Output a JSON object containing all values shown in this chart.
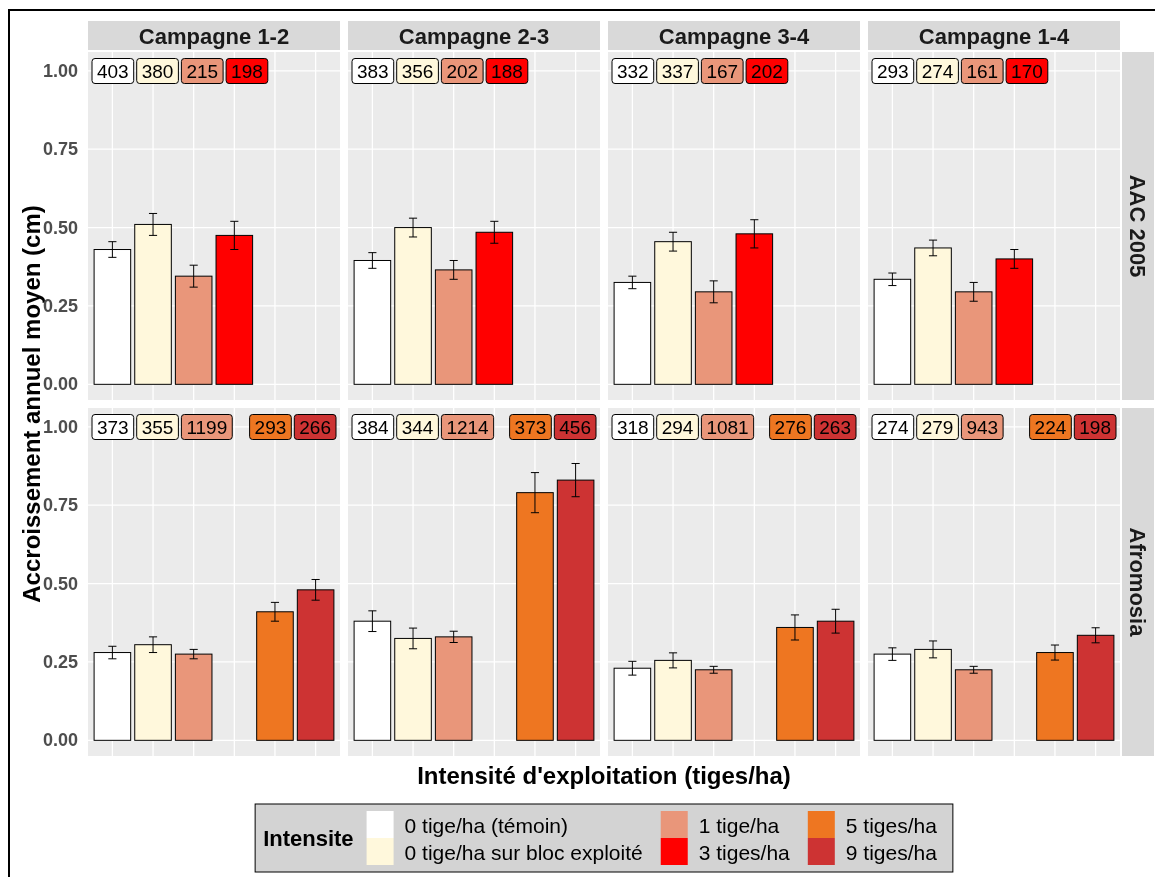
{
  "chart_data": [
    {
      "type": "bar",
      "title": "AAC 2005",
      "ylabel": "Accroissement annuel moyen (cm)",
      "legend": "bottom",
      "legend_title": "Intensite",
      "categories": [
        "Campagne 1-2",
        "Campagne 2-3",
        "Campagne 3-4",
        "Campagne 1-4"
      ],
      "series": [
        {
          "name": "0 tige/ha (témoin)",
          "color": "#ffffff",
          "values": [
            0.43,
            0.395,
            0.325,
            0.335
          ],
          "errors": [
            0.025,
            0.025,
            0.02,
            0.02
          ]
        },
        {
          "name": "0 tige/ha sur bloc exploité",
          "color": "#fff8dc",
          "values": [
            0.51,
            0.5,
            0.455,
            0.435
          ],
          "errors": [
            0.035,
            0.03,
            0.03,
            0.025
          ]
        },
        {
          "name": "1 tige/ha",
          "color": "#e9967a",
          "values": [
            0.345,
            0.365,
            0.295,
            0.295
          ],
          "errors": [
            0.035,
            0.03,
            0.035,
            0.03
          ]
        },
        {
          "name": "3 tiges/ha",
          "color": "#ff0000",
          "values": [
            0.475,
            0.485,
            0.48,
            0.4
          ],
          "errors": [
            0.045,
            0.035,
            0.045,
            0.03
          ]
        },
        {
          "name": "5 tiges/ha",
          "color": "#ee7621",
          "values": [
            null,
            null,
            null,
            null
          ]
        },
        {
          "name": "9 tiges/ha",
          "color": "#cd3333",
          "values": [
            null,
            null,
            null,
            null
          ]
        }
      ],
      "annotations": [
        "403",
        "380",
        "215",
        "198",
        "383",
        "356",
        "202",
        "188",
        "332",
        "337",
        "167",
        "202",
        "293",
        "274",
        "161",
        "170"
      ],
      "ylim": [
        -0.05,
        1.06
      ],
      "yticks": [
        {
          "value": 0,
          "label": "0.00"
        },
        {
          "value": 0.25,
          "label": "0.25"
        },
        {
          "value": 0.5,
          "label": "0.50"
        },
        {
          "value": 0.75,
          "label": "0.75"
        },
        {
          "value": 1,
          "label": "1.00"
        }
      ],
      "grid": true
    },
    {
      "type": "bar",
      "title": "Afromosia",
      "xlabel": "Intensité d'exploitation (tiges/ha)",
      "categories": [
        null,
        null,
        null,
        null
      ],
      "series": [
        {
          "color": "#ffffff",
          "values": [
            0.28,
            0.38,
            0.23,
            0.275
          ],
          "errors": [
            0.02,
            0.033,
            0.022,
            0.02
          ]
        },
        {
          "color": "#fff8dc",
          "values": [
            0.305,
            0.325,
            0.255,
            0.29
          ],
          "errors": [
            0.025,
            0.033,
            0.024,
            0.027
          ]
        },
        {
          "color": "#e9967a",
          "values": [
            0.275,
            0.33,
            0.225,
            0.225
          ],
          "errors": [
            0.015,
            0.018,
            0.011,
            0.011
          ]
        },
        {
          "values": [
            null,
            null,
            null,
            null
          ]
        },
        {
          "color": "#ee7621",
          "values": [
            0.41,
            0.79,
            0.36,
            0.28
          ],
          "errors": [
            0.03,
            0.064,
            0.04,
            0.024
          ]
        },
        {
          "color": "#cd3333",
          "values": [
            0.48,
            0.83,
            0.38,
            0.335
          ],
          "errors": [
            0.033,
            0.053,
            0.038,
            0.024
          ]
        }
      ],
      "annotations": [
        "373",
        "355",
        "1199",
        "293",
        "266",
        "384",
        "344",
        "1214",
        "373",
        "456",
        "318",
        "294",
        "1081",
        "276",
        "263",
        "274",
        "279",
        "943",
        "224",
        "198"
      ],
      "ylim": [
        -0.05,
        1.06
      ],
      "yticks": [
        {
          "value": 0,
          "label": "0.00"
        },
        {
          "value": 0.25,
          "label": "0.25"
        },
        {
          "value": 0.5,
          "label": "0.50"
        },
        {
          "value": 0.75,
          "label": "0.75"
        },
        {
          "value": 1,
          "label": "1.00"
        }
      ],
      "grid": true,
      "tick_labels": "y"
    }
  ]
}
